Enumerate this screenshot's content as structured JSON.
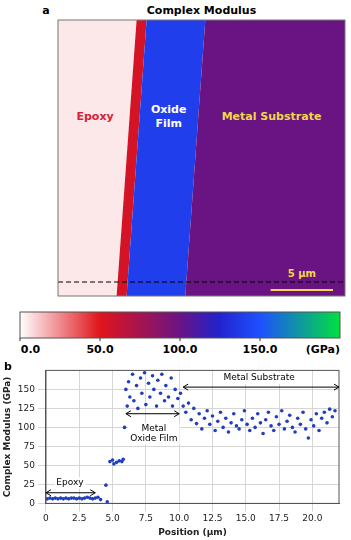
{
  "figure_map": {
    "title": "Complex Modulus",
    "panel": "a",
    "width_um": 23,
    "regions": [
      {
        "label": "Epoxy",
        "modulus": 5,
        "x_um": [
          0,
          5.5
        ],
        "color": "#d8203a"
      },
      {
        "modulus": 55,
        "x_um": [
          5.5,
          6.3
        ]
      },
      {
        "label": "Oxide Film",
        "modulus": 140,
        "x_um": [
          6.3,
          11
        ],
        "color": "#ffffff"
      },
      {
        "label": "Metal Substrate",
        "modulus": 100,
        "x_um": [
          11,
          23
        ],
        "color": "#f2d64a"
      }
    ],
    "scale_bar": {
      "length_um": 5,
      "label": "5 μm"
    }
  },
  "colorbar": {
    "range": [
      0,
      200
    ],
    "ticks": [
      {
        "value": 0,
        "label": "0.0"
      },
      {
        "value": 50,
        "label": "50.0"
      },
      {
        "value": 100,
        "label": "100.0"
      },
      {
        "value": 150,
        "label": "150.0"
      }
    ],
    "unit_label": "(GPa)"
  },
  "chart_data": {
    "type": "scatter",
    "panel": "b",
    "x_label": "Position (μm)",
    "y_label": "Complex Modulus (GPa)",
    "xlim": [
      0,
      22
    ],
    "ylim": [
      0,
      175
    ],
    "xticks": [
      0,
      2.5,
      {
        "value": 5,
        "label": "5.0"
      },
      7.5,
      {
        "value": 10,
        "label": "10.0"
      },
      12.5,
      {
        "value": 15,
        "label": "15.0"
      },
      17.5,
      {
        "value": 20,
        "label": "20.0"
      }
    ],
    "yticks": [
      0,
      25,
      50,
      75,
      100,
      125,
      150
    ],
    "grid": true,
    "color": "#1f3fbf",
    "marker": "circle",
    "x": [
      0.1,
      0.3,
      0.5,
      0.7,
      0.9,
      1.1,
      1.3,
      1.5,
      1.7,
      1.9,
      2.1,
      2.3,
      2.5,
      2.7,
      2.9,
      3.1,
      3.3,
      3.5,
      3.7,
      3.9,
      4.1,
      4.5,
      4.6,
      4.8,
      5.0,
      5.1,
      5.3,
      5.5,
      5.7,
      5.8,
      5.9,
      6.0,
      6.1,
      6.2,
      6.3,
      6.5,
      6.6,
      6.8,
      6.9,
      7.1,
      7.2,
      7.4,
      7.5,
      7.7,
      7.8,
      8.0,
      8.1,
      8.3,
      8.4,
      8.6,
      8.7,
      8.9,
      9.0,
      9.2,
      9.4,
      9.5,
      9.7,
      9.9,
      10.1,
      10.3,
      10.5,
      10.7,
      10.9,
      11.1,
      11.3,
      11.5,
      11.7,
      11.9,
      12.1,
      12.3,
      12.5,
      12.7,
      12.9,
      13.1,
      13.3,
      13.5,
      13.7,
      13.9,
      14.1,
      14.3,
      14.5,
      14.7,
      14.9,
      15.1,
      15.3,
      15.5,
      15.7,
      15.9,
      16.1,
      16.3,
      16.5,
      16.7,
      16.9,
      17.1,
      17.3,
      17.5,
      17.7,
      17.9,
      18.1,
      18.3,
      18.5,
      18.7,
      18.9,
      19.1,
      19.3,
      19.5,
      19.7,
      19.9,
      20.1,
      20.3,
      20.5,
      20.7,
      20.9,
      21.1,
      21.3,
      21.5,
      21.7
    ],
    "values": [
      6,
      7,
      6,
      7,
      6,
      7,
      6,
      7,
      6,
      7,
      7,
      6,
      7,
      6,
      7,
      8,
      7,
      6,
      7,
      8,
      5,
      24,
      2,
      55,
      57,
      52,
      54,
      56,
      55,
      58,
      100,
      150,
      128,
      160,
      140,
      170,
      135,
      155,
      125,
      165,
      145,
      172,
      130,
      158,
      140,
      168,
      150,
      128,
      162,
      145,
      170,
      135,
      155,
      140,
      165,
      128,
      150,
      138,
      145,
      128,
      120,
      132,
      110,
      125,
      105,
      118,
      98,
      112,
      122,
      104,
      115,
      96,
      108,
      120,
      100,
      112,
      94,
      106,
      118,
      102,
      98,
      110,
      122,
      104,
      96,
      112,
      100,
      118,
      106,
      92,
      110,
      120,
      102,
      96,
      114,
      104,
      122,
      98,
      108,
      116,
      100,
      94,
      112,
      104,
      120,
      98,
      86,
      110,
      102,
      118,
      96,
      112,
      120,
      106,
      124,
      114,
      122
    ],
    "annotations": [
      {
        "text": "Epoxy",
        "x": 1.8,
        "y": 27,
        "arrow_x": [
          0,
          3.7
        ],
        "arrow_y": 14
      },
      {
        "text": "Metal Oxide Film",
        "x": 8.1,
        "y": 92,
        "arrow_x": [
          6.0,
          10.0
        ],
        "arrow_y": 118
      },
      {
        "text": "Metal Substrate",
        "x": 16,
        "y": 165,
        "arrow_x": [
          10.3,
          22
        ],
        "arrow_y": 153
      }
    ]
  }
}
